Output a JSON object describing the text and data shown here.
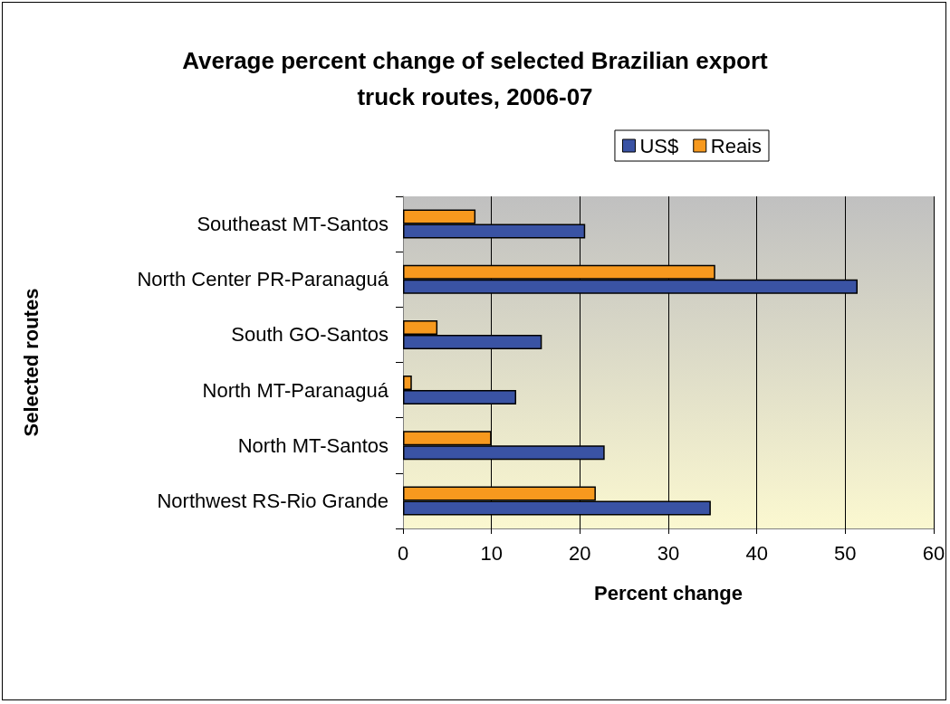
{
  "chart_data": {
    "type": "bar",
    "orientation": "horizontal",
    "title": "Average percent change of selected Brazilian export\ntruck routes, 2006-07",
    "xlabel": "Percent change",
    "ylabel": "Selected routes",
    "categories": [
      "Southeast MT-Santos",
      "North Center PR-Paranaguá",
      "South GO-Santos",
      "North MT-Paranaguá",
      "North MT-Santos",
      "Northwest RS-Rio Grande"
    ],
    "series": [
      {
        "name": "US$",
        "color": "#3a53a4",
        "values": [
          20.6,
          51.4,
          15.7,
          12.8,
          22.8,
          34.8
        ]
      },
      {
        "name": "Reais",
        "color": "#f7991e",
        "values": [
          8.2,
          35.3,
          3.9,
          1.0,
          10.0,
          21.8
        ]
      }
    ],
    "xlim": [
      0,
      60
    ],
    "xticks": [
      0,
      10,
      20,
      30,
      40,
      50,
      60
    ],
    "grid": "x",
    "legend": "top right"
  }
}
